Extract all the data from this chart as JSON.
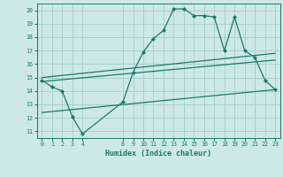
{
  "background_color": "#cde8e8",
  "grid_color": "#aacfcf",
  "line_color": "#1a7a6a",
  "x_ticks_pos": [
    0,
    1,
    2,
    3,
    4,
    8,
    9,
    10,
    11,
    12,
    13,
    14,
    15,
    16,
    17,
    18,
    19,
    20,
    21,
    22,
    23
  ],
  "x_ticks_labels": [
    "0",
    "1",
    "2",
    "3",
    "4",
    "8",
    "9",
    "10",
    "11",
    "12",
    "13",
    "14",
    "15",
    "16",
    "17",
    "18",
    "19",
    "20",
    "21",
    "22",
    "23"
  ],
  "xlabel": "Humidex (Indice chaleur)",
  "ylim": [
    10.5,
    20.5
  ],
  "yticks": [
    11,
    12,
    13,
    14,
    15,
    16,
    17,
    18,
    19,
    20
  ],
  "xlim": [
    -0.5,
    23.5
  ],
  "line1_x": [
    0,
    1,
    2,
    3,
    4,
    8,
    9,
    10,
    11,
    12,
    13,
    14,
    15,
    16,
    17,
    18,
    19,
    20,
    21,
    22,
    23
  ],
  "line1_y": [
    14.8,
    14.3,
    14.0,
    12.1,
    10.8,
    13.2,
    15.4,
    16.9,
    17.9,
    18.5,
    20.1,
    20.1,
    19.6,
    19.6,
    19.5,
    17.0,
    19.5,
    17.0,
    16.5,
    14.8,
    14.1
  ],
  "line2_x": [
    0,
    23
  ],
  "line2_y": [
    15.0,
    16.8
  ],
  "line3_x": [
    0,
    23
  ],
  "line3_y": [
    14.7,
    16.3
  ],
  "line4_x": [
    0,
    23
  ],
  "line4_y": [
    12.4,
    14.1
  ]
}
